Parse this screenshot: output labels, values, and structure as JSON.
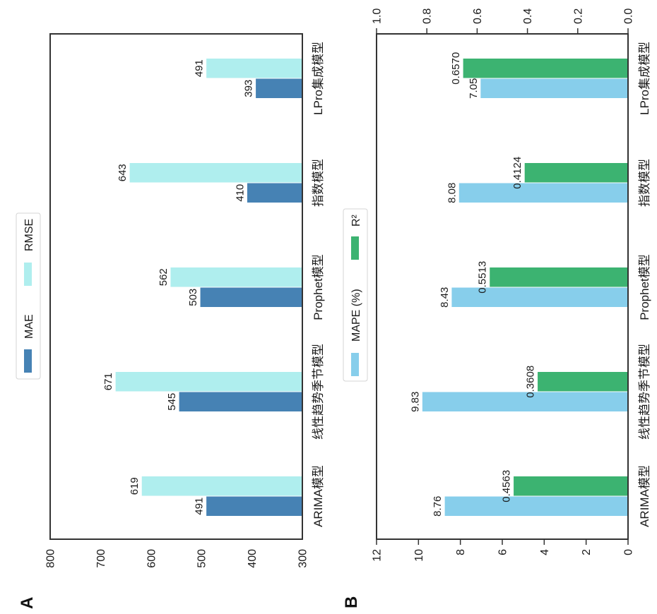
{
  "figure": {
    "panel_labels": {
      "a": "A",
      "b": "B"
    }
  },
  "chart_data": [
    {
      "panel": "A",
      "type": "bar",
      "title": "",
      "xlabel": "",
      "ylabel": "",
      "categories": [
        "ARIMA模型",
        "线性趋势季节模型",
        "Prophet模型",
        "指数模型",
        "LPro集成模型"
      ],
      "series": [
        {
          "name": "MAE",
          "color": "#4682B4",
          "values": [
            491,
            545,
            503,
            410,
            393
          ],
          "labels": [
            "491",
            "545",
            "503",
            "410",
            "393"
          ]
        },
        {
          "name": "RMSE",
          "color": "#AFEEEE",
          "values": [
            619,
            671,
            562,
            643,
            491
          ],
          "labels": [
            "619",
            "671",
            "562",
            "643",
            "491"
          ]
        }
      ],
      "ylim": [
        300,
        800
      ],
      "yticks": [
        300,
        400,
        500,
        600,
        700,
        800
      ],
      "ytick_labels": [
        "300",
        "400",
        "500",
        "600",
        "700",
        "800"
      ],
      "grid": false,
      "legend": {
        "placement": "top-center",
        "entries": [
          "MAE",
          "RMSE"
        ]
      }
    },
    {
      "panel": "B",
      "type": "bar",
      "title": "",
      "xlabel": "",
      "ylabel": "",
      "categories": [
        "ARIMA模型",
        "线性趋势季节模型",
        "Prophet模型",
        "指数模型",
        "LPro集成模型"
      ],
      "series": [
        {
          "name": "MAPE (%)",
          "axis": "left",
          "color": "#87CEEB",
          "values": [
            8.76,
            9.83,
            8.43,
            8.08,
            7.05
          ],
          "labels": [
            "8.76",
            "9.83",
            "8.43",
            "8.08",
            "7.05"
          ]
        },
        {
          "name": "R²",
          "axis": "right",
          "color": "#3CB371",
          "values": [
            0.4563,
            0.3608,
            0.5513,
            0.4124,
            0.657
          ],
          "labels": [
            "0.4563",
            "0.3608",
            "0.5513",
            "0.4124",
            "0.6570"
          ]
        }
      ],
      "ylim_left": [
        0,
        12
      ],
      "yticks_left": [
        0,
        2,
        4,
        6,
        8,
        10,
        12
      ],
      "ytick_labels_left": [
        "0",
        "2",
        "4",
        "6",
        "8",
        "10",
        "12"
      ],
      "ylim_right": [
        0,
        1.0
      ],
      "yticks_right": [
        0,
        0.2,
        0.4,
        0.6,
        0.8,
        1.0
      ],
      "ytick_labels_right": [
        "0.0",
        "0.2",
        "0.4",
        "0.6",
        "0.8",
        "1.0"
      ],
      "grid": false,
      "legend": {
        "placement": "top-center",
        "entries": [
          "MAPE (%)",
          "R²"
        ]
      }
    }
  ]
}
